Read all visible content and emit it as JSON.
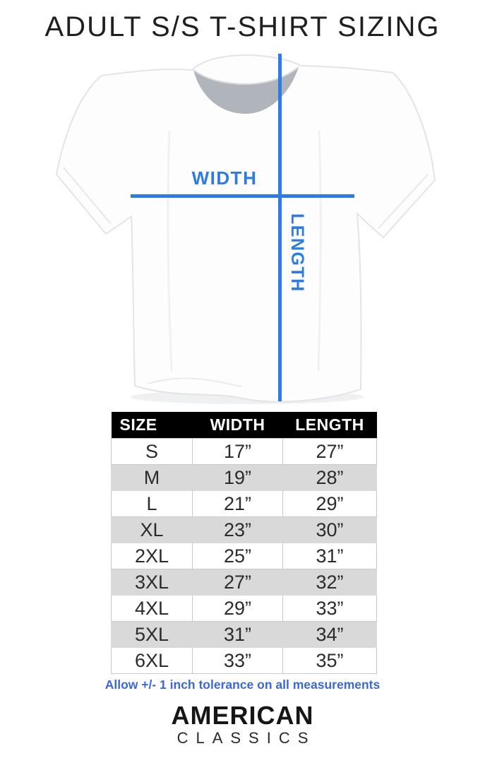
{
  "title": "ADULT S/S T-SHIRT SIZING",
  "diagram": {
    "width_label": "WIDTH",
    "length_label": "LENGTH"
  },
  "size_chart": {
    "columns": [
      "SIZE",
      "WIDTH",
      "LENGTH"
    ],
    "rows": [
      {
        "size": "S",
        "width": "17”",
        "length": "27”"
      },
      {
        "size": "M",
        "width": "19”",
        "length": "28”"
      },
      {
        "size": "L",
        "width": "21”",
        "length": "29”"
      },
      {
        "size": "XL",
        "width": "23”",
        "length": "30”"
      },
      {
        "size": "2XL",
        "width": "25”",
        "length": "31”"
      },
      {
        "size": "3XL",
        "width": "27”",
        "length": "32”"
      },
      {
        "size": "4XL",
        "width": "29”",
        "length": "33”"
      },
      {
        "size": "5XL",
        "width": "31”",
        "length": "34”"
      },
      {
        "size": "6XL",
        "width": "33”",
        "length": "35”"
      }
    ]
  },
  "tolerance_note": "Allow +/- 1 inch tolerance on all measurements",
  "brand": {
    "primary": "AMERICAN",
    "secondary": "CLASSICS"
  },
  "colors": {
    "accent_blue": "#2e7be5",
    "note_blue": "#3b68d5",
    "header_bg": "#000000",
    "row_alt_bg": "#d9d9d9"
  },
  "chart_data": {
    "type": "table",
    "title": "ADULT S/S T-SHIRT SIZING",
    "columns": [
      "SIZE",
      "WIDTH",
      "LENGTH"
    ],
    "rows": [
      [
        "S",
        "17”",
        "27”"
      ],
      [
        "M",
        "19”",
        "28”"
      ],
      [
        "L",
        "21”",
        "29”"
      ],
      [
        "XL",
        "23”",
        "30”"
      ],
      [
        "2XL",
        "25”",
        "31”"
      ],
      [
        "3XL",
        "27”",
        "32”"
      ],
      [
        "4XL",
        "29”",
        "33”"
      ],
      [
        "5XL",
        "31”",
        "34”"
      ],
      [
        "6XL",
        "33”",
        "35”"
      ]
    ],
    "footnote": "Allow +/- 1 inch tolerance on all measurements"
  }
}
